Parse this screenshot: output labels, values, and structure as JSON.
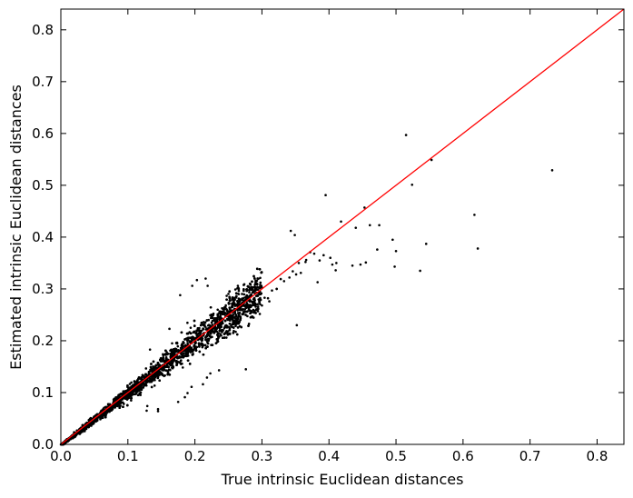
{
  "chart_data": {
    "type": "scatter",
    "title": "",
    "xlabel": "True intrinsic Euclidean distances",
    "ylabel": "Estimated intrinsic Euclidean distances",
    "xlim": [
      0.0,
      0.84
    ],
    "ylim": [
      0.0,
      0.84
    ],
    "xticks": [
      "0.0",
      "0.1",
      "0.2",
      "0.3",
      "0.4",
      "0.5",
      "0.6",
      "0.7",
      "0.8"
    ],
    "yticks": [
      "0.0",
      "0.1",
      "0.2",
      "0.3",
      "0.4",
      "0.5",
      "0.6",
      "0.7",
      "0.8"
    ],
    "grid": false,
    "legend": "none",
    "colors": {
      "points": "#000000",
      "reference_line": "#ff0000"
    },
    "reference_line": {
      "x": [
        0.0,
        0.84
      ],
      "y": [
        0.0,
        0.84
      ]
    },
    "series": [
      {
        "x": [
          0.515,
          0.553,
          0.733,
          0.524,
          0.622,
          0.617,
          0.447,
          0.453,
          0.435,
          0.343,
          0.475,
          0.536,
          0.495,
          0.5,
          0.461,
          0.545,
          0.498,
          0.472,
          0.455,
          0.44,
          0.418,
          0.411,
          0.402,
          0.392,
          0.386,
          0.378,
          0.372,
          0.365,
          0.358,
          0.351,
          0.346,
          0.405,
          0.41,
          0.383,
          0.366,
          0.355,
          0.341,
          0.333,
          0.328,
          0.322,
          0.315,
          0.309,
          0.304,
          0.296,
          0.29,
          0.395,
          0.349,
          0.322,
          0.311,
          0.3,
          0.352,
          0.294,
          0.283,
          0.267,
          0.258,
          0.252,
          0.247,
          0.276,
          0.216,
          0.203,
          0.196,
          0.178,
          0.162,
          0.166,
          0.158,
          0.133,
          0.145,
          0.128,
          0.223,
          0.236,
          0.218,
          0.189,
          0.212,
          0.195,
          0.185,
          0.175,
          0.145,
          0.129,
          0.278,
          0.297,
          0.219,
          0.272,
          0.248,
          0.238,
          0.225,
          0.255,
          0.234,
          0.208,
          0.193,
          0.152,
          0.129,
          0.112,
          0.095,
          0.085,
          0.078,
          0.072,
          0.063,
          0.055,
          0.048,
          0.04,
          0.032,
          0.025,
          0.018,
          0.012,
          0.008
        ],
        "y": [
          0.597,
          0.549,
          0.529,
          0.501,
          0.378,
          0.443,
          0.347,
          0.457,
          0.345,
          0.412,
          0.423,
          0.335,
          0.395,
          0.373,
          0.423,
          0.387,
          0.343,
          0.376,
          0.351,
          0.418,
          0.43,
          0.35,
          0.36,
          0.365,
          0.355,
          0.368,
          0.371,
          0.352,
          0.331,
          0.328,
          0.334,
          0.347,
          0.336,
          0.313,
          0.356,
          0.35,
          0.322,
          0.315,
          0.319,
          0.3,
          0.297,
          0.282,
          0.283,
          0.276,
          0.272,
          0.481,
          0.404,
          0.3,
          0.276,
          0.268,
          0.23,
          0.257,
          0.245,
          0.228,
          0.219,
          0.214,
          0.206,
          0.145,
          0.32,
          0.317,
          0.306,
          0.288,
          0.223,
          0.195,
          0.178,
          0.183,
          0.064,
          0.065,
          0.137,
          0.143,
          0.129,
          0.099,
          0.116,
          0.111,
          0.091,
          0.082,
          0.068,
          0.074,
          0.283,
          0.295,
          0.306,
          0.272,
          0.258,
          0.248,
          0.235,
          0.242,
          0.26,
          0.211,
          0.199,
          0.151,
          0.127,
          0.106,
          0.094,
          0.08,
          0.075,
          0.068,
          0.059,
          0.051,
          0.045,
          0.039,
          0.031,
          0.024,
          0.017,
          0.012,
          0.008
        ]
      }
    ],
    "dense_cluster": {
      "note": "Dense band of points around the diagonal for x in [0.0, 0.30]",
      "x_range": [
        0.0,
        0.3
      ],
      "relative_spread": 0.1,
      "count": 3500
    }
  }
}
